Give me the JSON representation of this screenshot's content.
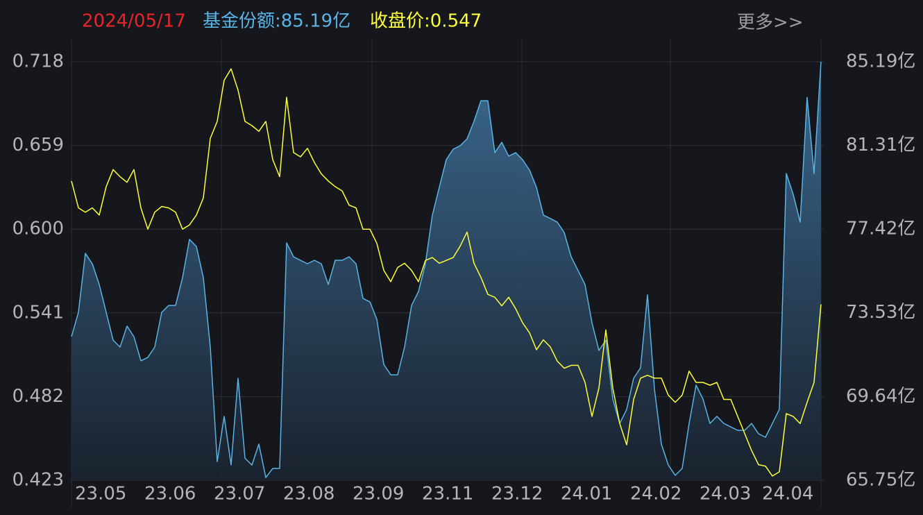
{
  "chart_data": {
    "type": "line_area",
    "date": "2024/05/17",
    "annotations": [
      "基金份额:85.19亿",
      "收盘价:0.547"
    ],
    "more_link": "更多>>",
    "categories": [
      "23.05",
      null,
      null,
      null,
      null,
      null,
      null,
      null,
      null,
      null,
      "23.06",
      null,
      null,
      null,
      null,
      null,
      null,
      null,
      null,
      null,
      "23.07",
      null,
      null,
      null,
      null,
      null,
      null,
      null,
      null,
      null,
      "23.08",
      null,
      null,
      null,
      null,
      null,
      null,
      null,
      null,
      null,
      "23.09",
      null,
      null,
      null,
      null,
      null,
      null,
      null,
      null,
      null,
      "23.11",
      null,
      null,
      null,
      null,
      null,
      null,
      null,
      null,
      null,
      "23.12",
      null,
      null,
      null,
      null,
      null,
      null,
      null,
      null,
      null,
      "24.01",
      null,
      null,
      null,
      null,
      null,
      null,
      null,
      null,
      null,
      "24.02",
      null,
      null,
      null,
      null,
      null,
      null,
      null,
      null,
      null,
      "24.03",
      null,
      null,
      null,
      null,
      null,
      null,
      null,
      null,
      "24.04",
      null,
      null,
      null,
      null,
      null,
      null,
      null,
      null,
      null
    ],
    "series": [
      {
        "color": "#5ab4e6",
        "axis": "y2",
        "fill": true,
        "values": [
          72.42,
          73.55,
          76.29,
          75.81,
          74.84,
          73.55,
          72.26,
          71.94,
          72.91,
          72.42,
          71.3,
          71.46,
          71.94,
          73.55,
          73.87,
          73.87,
          75.16,
          76.94,
          76.61,
          75.16,
          71.94,
          66.62,
          68.72,
          66.46,
          70.49,
          66.78,
          66.46,
          67.43,
          65.88,
          66.3,
          66.3,
          76.78,
          76.13,
          75.97,
          75.81,
          75.97,
          75.81,
          74.84,
          75.97,
          75.97,
          76.13,
          75.81,
          74.2,
          74.04,
          73.23,
          71.13,
          70.65,
          70.65,
          71.94,
          73.87,
          74.52,
          75.81,
          78.07,
          79.36,
          80.64,
          81.13,
          81.29,
          81.61,
          82.42,
          83.38,
          83.38,
          80.97,
          81.45,
          80.81,
          80.97,
          80.64,
          80.16,
          79.36,
          78.07,
          77.91,
          77.74,
          77.26,
          76.13,
          75.49,
          74.84,
          73.07,
          71.78,
          72.26,
          69.52,
          68.39,
          69.04,
          70.49,
          70.97,
          74.36,
          70.0,
          67.43,
          66.46,
          65.98,
          66.3,
          68.39,
          70.17,
          69.52,
          68.39,
          68.72,
          68.39,
          68.23,
          68.07,
          68.07,
          68.39,
          67.91,
          67.75,
          68.39,
          69.04,
          80.0,
          79.03,
          77.74,
          83.54,
          80.0,
          85.19
        ]
      },
      {
        "color": "#ffff3c",
        "axis": "y",
        "fill": false,
        "values": [
          0.634,
          0.615,
          0.612,
          0.615,
          0.61,
          0.63,
          0.642,
          0.637,
          0.633,
          0.642,
          0.615,
          0.6,
          0.612,
          0.616,
          0.615,
          0.612,
          0.6,
          0.603,
          0.61,
          0.622,
          0.664,
          0.676,
          0.705,
          0.713,
          0.698,
          0.676,
          0.673,
          0.669,
          0.676,
          0.649,
          0.637,
          0.693,
          0.654,
          0.651,
          0.657,
          0.647,
          0.639,
          0.634,
          0.63,
          0.627,
          0.617,
          0.615,
          0.6,
          0.6,
          0.59,
          0.571,
          0.563,
          0.573,
          0.576,
          0.571,
          0.563,
          0.578,
          0.58,
          0.576,
          0.578,
          0.58,
          0.588,
          0.598,
          0.576,
          0.566,
          0.554,
          0.552,
          0.546,
          0.552,
          0.544,
          0.534,
          0.527,
          0.515,
          0.522,
          0.517,
          0.507,
          0.502,
          0.504,
          0.504,
          0.492,
          0.468,
          0.488,
          0.529,
          0.488,
          0.463,
          0.448,
          0.48,
          0.495,
          0.497,
          0.495,
          0.495,
          0.483,
          0.478,
          0.483,
          0.5,
          0.492,
          0.492,
          0.49,
          0.492,
          0.48,
          0.48,
          0.468,
          0.456,
          0.444,
          0.434,
          0.433,
          0.426,
          0.429,
          0.47,
          0.468,
          0.463,
          0.478,
          0.492,
          0.547
        ]
      }
    ],
    "ylim": [
      0.423,
      0.718
    ],
    "yticks": [
      0.423,
      0.482,
      0.541,
      {
        "value": 0.6,
        "label": "0.600"
      },
      0.659,
      0.718
    ],
    "y2lim": [
      65.75,
      85.19
    ],
    "y2ticks": [
      {
        "value": 65.75,
        "label": "65.75亿"
      },
      {
        "value": 69.64,
        "label": "69.64亿"
      },
      {
        "value": 73.53,
        "label": "73.53亿"
      },
      {
        "value": 77.42,
        "label": "77.42亿"
      },
      {
        "value": 81.31,
        "label": "81.31亿"
      },
      {
        "value": 85.19,
        "label": "85.19亿"
      }
    ],
    "grid": true
  }
}
